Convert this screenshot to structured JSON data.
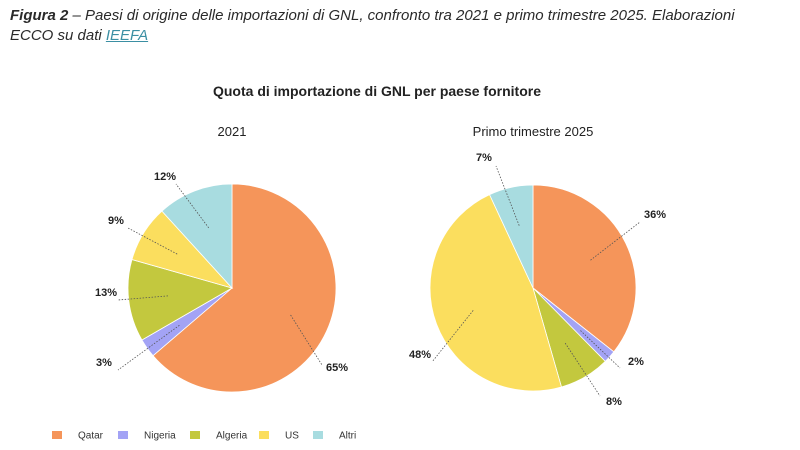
{
  "caption": {
    "figure_label": "Figura 2",
    "text_before_link": " – Paesi di origine delle importazioni di GNL, confronto tra 2021 e primo trimestre 2025. Elaborazioni ECCO su dati ",
    "link_text": "IEEFA"
  },
  "colors": {
    "Qatar": "#f5955a",
    "Nigeria": "#a3a3f5",
    "Algeria": "#c3c83e",
    "US": "#fbde5e",
    "Altri": "#a8dce0"
  },
  "chart_data": [
    {
      "type": "pie",
      "title": "Quota di importazione di GNL per paese fornitore",
      "subtitle": "2021",
      "categories": [
        "Qatar",
        "Nigeria",
        "Algeria",
        "US",
        "Altri"
      ],
      "values": [
        65,
        3,
        13,
        9,
        12
      ],
      "labels": [
        "65%",
        "3%",
        "13%",
        "9%",
        "12%"
      ],
      "legend_position": "bottom-left"
    },
    {
      "type": "pie",
      "title": "Quota di importazione di GNL per paese fornitore",
      "subtitle": "Primo trimestre 2025",
      "categories": [
        "Qatar",
        "Nigeria",
        "Algeria",
        "US",
        "Altri"
      ],
      "values": [
        36,
        2,
        8,
        48,
        7
      ],
      "labels": [
        "36%",
        "2%",
        "8%",
        "48%",
        "7%"
      ],
      "legend_position": "bottom-left"
    }
  ]
}
